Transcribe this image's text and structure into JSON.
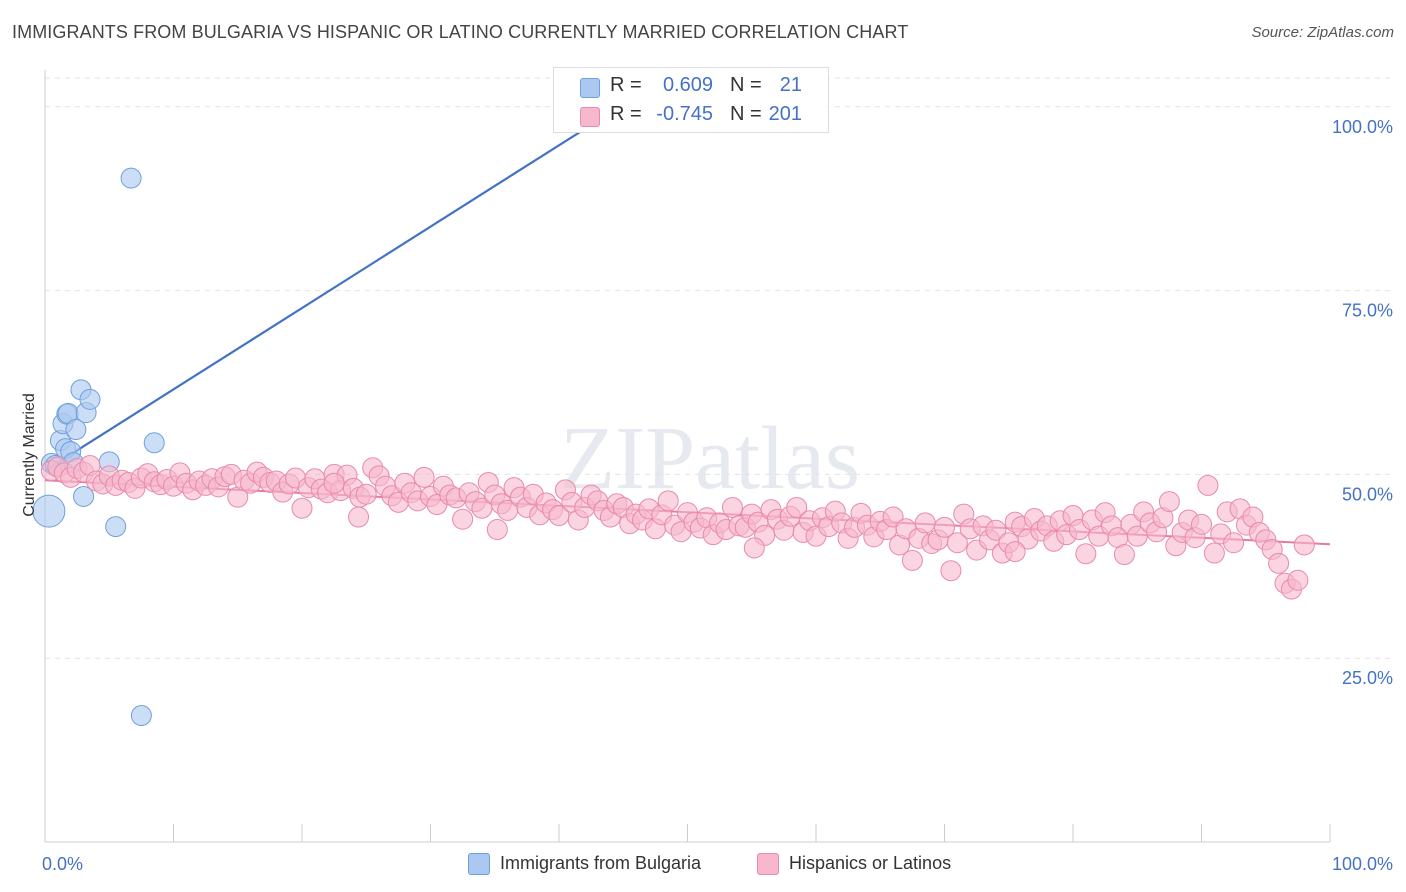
{
  "header": {
    "title": "IMMIGRANTS FROM BULGARIA VS HISPANIC OR LATINO CURRENTLY MARRIED CORRELATION CHART",
    "source": "Source: ZipAtlas.com"
  },
  "watermark": "ZIPatlas",
  "legend": {
    "rows": [
      {
        "r_label": "R =",
        "r_value": "0.609",
        "n_label": "N =",
        "n_value": "21"
      },
      {
        "r_label": "R =",
        "r_value": "-0.745",
        "n_label": "N =",
        "n_value": "201"
      }
    ]
  },
  "chart_data": {
    "type": "scatter",
    "title": "IMMIGRANTS FROM BULGARIA VS HISPANIC OR LATINO CURRENTLY MARRIED CORRELATION CHART",
    "xlabel": "",
    "ylabel": "Currently Married",
    "xlim": [
      0,
      100
    ],
    "ylim": [
      0,
      105
    ],
    "x_tick_labels": [
      "0.0%",
      "100.0%"
    ],
    "y_tick_labels": [
      "25.0%",
      "50.0%",
      "75.0%",
      "100.0%"
    ],
    "y_ticks": [
      25,
      50,
      75,
      100
    ],
    "grid": true,
    "legend_position": "bottom",
    "colors": {
      "bulgaria": "#4472c4",
      "hispanic": "#e8799e"
    },
    "series": [
      {
        "name": "Immigrants from Bulgaria",
        "color": "#aac8f0",
        "edge": "#6f9fdc",
        "trend": {
          "x0": 0,
          "y0": 50.5,
          "x1": 47,
          "y1": 102.5
        },
        "points": [
          [
            0.3,
            45,
            1.6
          ],
          [
            0.5,
            51.5,
            1
          ],
          [
            1.2,
            54.6,
            1
          ],
          [
            1.4,
            56.9,
            1
          ],
          [
            1.6,
            53.5,
            1
          ],
          [
            1.7,
            58.2,
            1
          ],
          [
            1.8,
            58.3,
            1
          ],
          [
            2.0,
            53.1,
            1
          ],
          [
            2.2,
            51.6,
            1
          ],
          [
            2.4,
            56.1,
            1
          ],
          [
            2.8,
            61.5,
            1
          ],
          [
            3.0,
            47.0,
            1
          ],
          [
            3.2,
            58.4,
            1
          ],
          [
            3.5,
            60.2,
            1
          ],
          [
            5.0,
            51.7,
            1
          ],
          [
            5.5,
            42.9,
            1
          ],
          [
            6.7,
            90.3,
            1
          ],
          [
            7.5,
            17.2,
            1
          ],
          [
            8.5,
            54.3,
            1
          ],
          [
            47.5,
            102.5,
            1
          ],
          [
            0.8,
            51.2,
            1
          ]
        ]
      },
      {
        "name": "Hispanics or Latinos",
        "color": "#f6b8cc",
        "edge": "#e88aaa",
        "trend": {
          "x0": 0,
          "y0": 49.2,
          "x1": 100,
          "y1": 40.5
        },
        "points": [
          [
            0.5,
            50.5
          ],
          [
            1,
            51
          ],
          [
            1.5,
            50.2
          ],
          [
            2,
            49.6
          ],
          [
            2.5,
            50.8
          ],
          [
            3,
            50.3
          ],
          [
            3.5,
            51.2
          ],
          [
            4,
            49.1
          ],
          [
            4.5,
            48.7
          ],
          [
            5,
            49.8
          ],
          [
            5.5,
            48.5
          ],
          [
            6,
            49.2
          ],
          [
            6.5,
            48.9
          ],
          [
            7,
            48.1
          ],
          [
            7.5,
            49.5
          ],
          [
            8,
            50.1
          ],
          [
            8.5,
            49
          ],
          [
            9,
            48.6
          ],
          [
            9.5,
            49.3
          ],
          [
            10,
            48.4
          ],
          [
            10.5,
            50.2
          ],
          [
            11,
            48.8
          ],
          [
            11.5,
            47.9
          ],
          [
            12,
            49.1
          ],
          [
            12.5,
            48.5
          ],
          [
            13,
            49.4
          ],
          [
            13.5,
            48.3
          ],
          [
            14,
            49.7
          ],
          [
            14.5,
            50
          ],
          [
            15,
            46.9
          ],
          [
            15.5,
            49.2
          ],
          [
            16,
            48.8
          ],
          [
            16.5,
            50.3
          ],
          [
            17,
            49.6
          ],
          [
            17.5,
            48.9
          ],
          [
            18,
            49.1
          ],
          [
            18.5,
            47.6
          ],
          [
            19,
            48.7
          ],
          [
            19.5,
            49.5
          ],
          [
            20,
            45.4
          ],
          [
            20.5,
            48.2
          ],
          [
            21,
            49.4
          ],
          [
            21.5,
            48
          ],
          [
            22,
            47.5
          ],
          [
            22.5,
            50
          ],
          [
            23,
            47.8
          ],
          [
            23.5,
            49.9
          ],
          [
            24,
            48.1
          ],
          [
            24.5,
            46.9
          ],
          [
            25,
            47.3
          ],
          [
            25.5,
            50.9
          ],
          [
            26,
            49.8
          ],
          [
            26.5,
            48.4
          ],
          [
            27,
            47.1
          ],
          [
            27.5,
            46.2
          ],
          [
            28,
            48.8
          ],
          [
            28.5,
            47.5
          ],
          [
            29,
            46.4
          ],
          [
            29.5,
            49.6
          ],
          [
            30,
            47
          ],
          [
            30.5,
            45.9
          ],
          [
            31,
            48.4
          ],
          [
            31.5,
            47.2
          ],
          [
            32,
            46.8
          ],
          [
            32.5,
            43.9
          ],
          [
            33,
            47.5
          ],
          [
            33.5,
            46.3
          ],
          [
            34,
            45.4
          ],
          [
            34.5,
            48.9
          ],
          [
            35,
            47.2
          ],
          [
            35.5,
            46
          ],
          [
            36,
            45.1
          ],
          [
            36.5,
            48.2
          ],
          [
            37,
            46.9
          ],
          [
            37.5,
            45.5
          ],
          [
            38,
            47.3
          ],
          [
            38.5,
            44.5
          ],
          [
            39,
            46.1
          ],
          [
            39.5,
            45.2
          ],
          [
            40,
            44.4
          ],
          [
            40.5,
            47.9
          ],
          [
            41,
            46.2
          ],
          [
            41.5,
            43.8
          ],
          [
            42,
            45.5
          ],
          [
            42.5,
            47.2
          ],
          [
            43,
            46.4
          ],
          [
            43.5,
            45.1
          ],
          [
            44,
            44.2
          ],
          [
            44.5,
            46
          ],
          [
            45,
            45.5
          ],
          [
            45.5,
            43.3
          ],
          [
            46,
            44.6
          ],
          [
            46.5,
            43.8
          ],
          [
            47,
            45.3
          ],
          [
            47.5,
            42.6
          ],
          [
            48,
            44.5
          ],
          [
            48.5,
            46.4
          ],
          [
            49,
            43.1
          ],
          [
            49.5,
            42.2
          ],
          [
            50,
            44.8
          ],
          [
            50.5,
            43.5
          ],
          [
            51,
            42.7
          ],
          [
            51.5,
            44.1
          ],
          [
            52,
            41.8
          ],
          [
            52.5,
            43.4
          ],
          [
            53,
            42.5
          ],
          [
            53.5,
            45.5
          ],
          [
            54,
            43
          ],
          [
            54.5,
            42.8
          ],
          [
            55,
            44.6
          ],
          [
            55.5,
            43.5
          ],
          [
            56,
            41.7
          ],
          [
            56.5,
            45.2
          ],
          [
            57,
            43.9
          ],
          [
            57.5,
            42.4
          ],
          [
            58,
            44.3
          ],
          [
            58.5,
            45.5
          ],
          [
            59,
            42.1
          ],
          [
            59.5,
            43.7
          ],
          [
            60,
            41.6
          ],
          [
            60.5,
            44.1
          ],
          [
            61,
            42.9
          ],
          [
            61.5,
            45
          ],
          [
            62,
            43.4
          ],
          [
            62.5,
            41.3
          ],
          [
            63,
            42.8
          ],
          [
            63.5,
            44.7
          ],
          [
            64,
            43.1
          ],
          [
            64.5,
            41.5
          ],
          [
            65,
            43.6
          ],
          [
            65.5,
            42.5
          ],
          [
            66,
            44.2
          ],
          [
            66.5,
            40.4
          ],
          [
            67,
            42.6
          ],
          [
            67.5,
            38.3
          ],
          [
            68,
            41.3
          ],
          [
            68.5,
            43.4
          ],
          [
            69,
            40.6
          ],
          [
            69.5,
            41.1
          ],
          [
            70,
            42.8
          ],
          [
            70.5,
            36.9
          ],
          [
            71,
            40.7
          ],
          [
            71.5,
            44.6
          ],
          [
            72,
            42.6
          ],
          [
            72.5,
            39.7
          ],
          [
            73,
            43
          ],
          [
            73.5,
            41.1
          ],
          [
            74,
            42.4
          ],
          [
            74.5,
            39.3
          ],
          [
            75,
            40.7
          ],
          [
            75.5,
            43.5
          ],
          [
            76,
            42.9
          ],
          [
            76.5,
            41.2
          ],
          [
            77,
            44
          ],
          [
            77.5,
            42.3
          ],
          [
            78,
            43
          ],
          [
            78.5,
            40.9
          ],
          [
            79,
            43.7
          ],
          [
            79.5,
            41.8
          ],
          [
            80,
            44.4
          ],
          [
            80.5,
            42.5
          ],
          [
            81,
            39.2
          ],
          [
            81.5,
            43.8
          ],
          [
            82,
            41.6
          ],
          [
            82.5,
            44.8
          ],
          [
            83,
            43
          ],
          [
            83.5,
            41.4
          ],
          [
            84,
            39.1
          ],
          [
            84.5,
            43.2
          ],
          [
            85,
            41.6
          ],
          [
            85.5,
            44.9
          ],
          [
            86,
            43.4
          ],
          [
            86.5,
            42.2
          ],
          [
            87,
            44.1
          ],
          [
            87.5,
            46.3
          ],
          [
            88,
            40.3
          ],
          [
            88.5,
            42.1
          ],
          [
            89,
            43.8
          ],
          [
            89.5,
            41.4
          ],
          [
            90,
            43.2
          ],
          [
            90.5,
            48.5
          ],
          [
            91,
            39.3
          ],
          [
            91.5,
            41.9
          ],
          [
            92,
            44.9
          ],
          [
            92.5,
            40.7
          ],
          [
            93,
            45.3
          ],
          [
            93.5,
            43.1
          ],
          [
            94,
            44.2
          ],
          [
            94.5,
            42.1
          ],
          [
            95,
            41.1
          ],
          [
            95.5,
            39.8
          ],
          [
            96,
            37.9
          ],
          [
            96.5,
            35.2
          ],
          [
            97,
            34.4
          ],
          [
            97.5,
            35.6
          ],
          [
            98,
            40.4
          ],
          [
            24.4,
            44.2
          ],
          [
            35.2,
            42.5
          ],
          [
            55.2,
            40
          ],
          [
            75.5,
            39.5
          ],
          [
            22.5,
            48.8
          ]
        ]
      }
    ]
  }
}
